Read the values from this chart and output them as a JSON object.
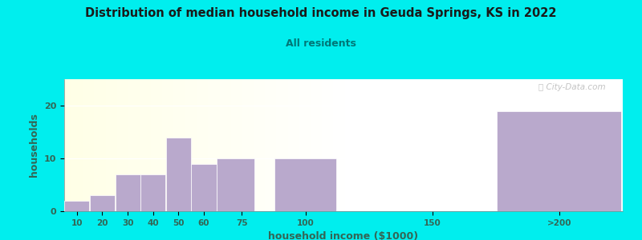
{
  "title": "Distribution of median household income in Geuda Springs, KS in 2022",
  "subtitle": "All residents",
  "xlabel": "household income ($1000)",
  "ylabel": "households",
  "bg_color": "#00EEEE",
  "bar_color": "#b9a9cc",
  "bar_edge_color": "#ffffff",
  "title_color": "#1a1a1a",
  "subtitle_color": "#007777",
  "axis_label_color": "#336655",
  "tick_label_color": "#336655",
  "categories": [
    "10",
    "20",
    "30",
    "40",
    "50",
    "60",
    "75",
    "100",
    "150",
    ">200"
  ],
  "tick_positions": [
    10,
    20,
    30,
    40,
    50,
    60,
    75,
    100,
    150,
    200
  ],
  "bar_lefts": [
    5,
    15,
    25,
    35,
    45,
    55,
    65,
    87.5,
    125,
    175
  ],
  "bar_widths": [
    10,
    10,
    10,
    10,
    10,
    10,
    15,
    25,
    25,
    50
  ],
  "values": [
    2,
    3,
    7,
    7,
    14,
    9,
    10,
    10,
    0,
    19
  ],
  "ylim": [
    0,
    25
  ],
  "yticks": [
    0,
    10,
    20
  ],
  "watermark": "ⓘ City-Data.com",
  "xlim": [
    5,
    225
  ]
}
